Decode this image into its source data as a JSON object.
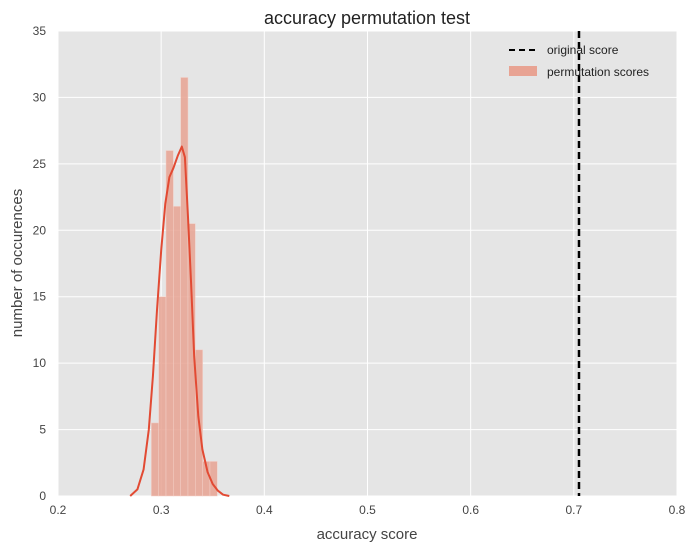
{
  "chart_data": {
    "type": "bar",
    "title": "accuracy permutation test",
    "xlabel": "accuracy score",
    "ylabel": "number of occurences",
    "xlim": [
      0.2,
      0.8
    ],
    "ylim": [
      0,
      35
    ],
    "xticks": [
      0.2,
      0.3,
      0.4,
      0.5,
      0.6,
      0.7,
      0.8
    ],
    "yticks": [
      0,
      5,
      10,
      15,
      20,
      25,
      30,
      35
    ],
    "grid": true,
    "background": "#e5e5e5",
    "legend_position": "top-right",
    "histogram": {
      "name": "permutation scores",
      "color": "#e8a393",
      "bin_width": 0.0071,
      "bins": [
        {
          "x0": 0.2905,
          "height": 5.5
        },
        {
          "x0": 0.2976,
          "height": 15.0
        },
        {
          "x0": 0.3047,
          "height": 26.0
        },
        {
          "x0": 0.3118,
          "height": 21.8
        },
        {
          "x0": 0.3189,
          "height": 31.5
        },
        {
          "x0": 0.326,
          "height": 20.5
        },
        {
          "x0": 0.3331,
          "height": 11.0
        },
        {
          "x0": 0.3402,
          "height": 2.6
        },
        {
          "x0": 0.3473,
          "height": 2.6
        }
      ]
    },
    "kde": {
      "color": "#e24a33",
      "x": [
        0.27,
        0.277,
        0.283,
        0.288,
        0.292,
        0.296,
        0.3,
        0.304,
        0.308,
        0.312,
        0.316,
        0.32,
        0.323,
        0.326,
        0.329,
        0.332,
        0.336,
        0.34,
        0.345,
        0.35,
        0.355,
        0.36,
        0.366
      ],
      "y": [
        0,
        0.5,
        2.0,
        5.0,
        9.0,
        14.0,
        18.5,
        22.0,
        24.0,
        24.7,
        25.6,
        26.3,
        25.5,
        21.0,
        16.0,
        10.5,
        6.0,
        3.5,
        1.8,
        0.9,
        0.4,
        0.1,
        0
      ]
    },
    "reference_line": {
      "name": "original score",
      "x": 0.705,
      "color": "#000000",
      "style": "dashed"
    }
  }
}
